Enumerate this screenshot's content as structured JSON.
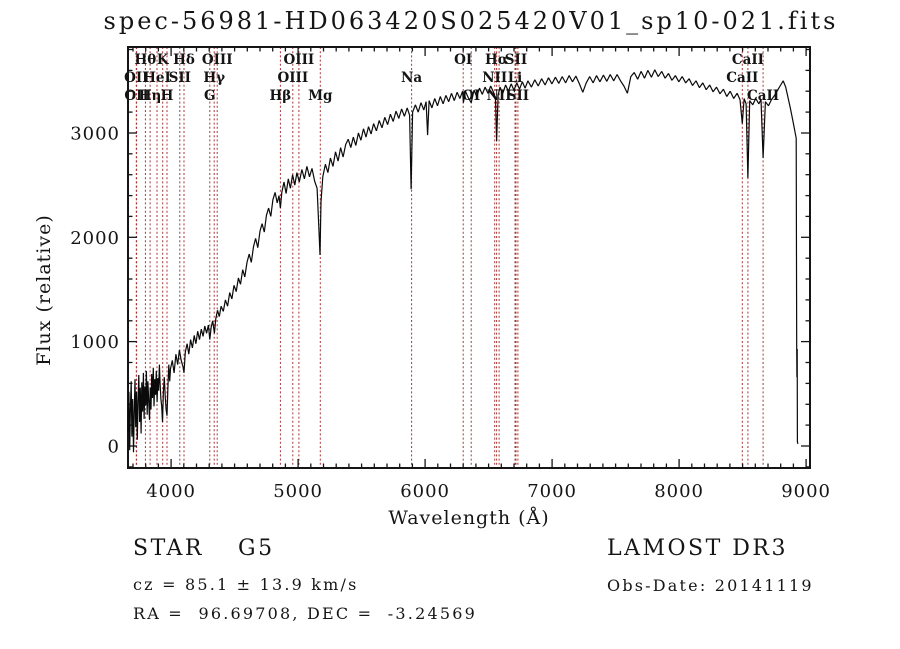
{
  "title": "spec-56981-HD063420S025420V01_sp10-021.fits",
  "annotations": {
    "object_class": "STAR",
    "subclass": "G5",
    "cz": "cz = 85.1 ± 13.9 km/s",
    "ra_dec": "RA =  96.69708, DEC =  -3.24569",
    "survey": "LAMOST DR3",
    "obs_date": "Obs-Date: 20141119"
  },
  "colors": {
    "background": "#ffffff",
    "spectrum": "#0a0a0a",
    "line_marker": "#a93434",
    "frame": "#151515"
  },
  "chart_data": {
    "type": "line",
    "title": "spec-56981-HD063420S025420V01_sp10-021.fits",
    "xlabel": "Wavelength (Å)",
    "ylabel": "Flux (relative)",
    "xlim": [
      3661,
      9031
    ],
    "ylim": [
      -211,
      3824
    ],
    "x_ticks": [
      4000,
      5000,
      6000,
      7000,
      8000,
      9000
    ],
    "y_ticks": [
      0,
      1000,
      2000,
      3000
    ],
    "x_minor_step": 100,
    "y_minor_step": 200,
    "grid": "off",
    "legend": "none",
    "spectral_lines": [
      {
        "wavelength": 3726,
        "label": "OII",
        "row": 1
      },
      {
        "wavelength": 3729,
        "label": "OII",
        "row": 2
      },
      {
        "wavelength": 3798,
        "label": "Hθ",
        "row": 0
      },
      {
        "wavelength": 3835,
        "label": "Hη",
        "row": 2
      },
      {
        "wavelength": 3889,
        "label": "HeI",
        "row": 1
      },
      {
        "wavelength": 3934,
        "label": "K",
        "row": 0
      },
      {
        "wavelength": 3968,
        "label": "H",
        "row": 2
      },
      {
        "wavelength": 4069,
        "label": "SII",
        "row": 1
      },
      {
        "wavelength": 4102,
        "label": "Hδ",
        "row": 0
      },
      {
        "wavelength": 4305,
        "label": "G",
        "row": 2
      },
      {
        "wavelength": 4340,
        "label": "Hγ",
        "row": 1
      },
      {
        "wavelength": 4363,
        "label": "OIII",
        "row": 0
      },
      {
        "wavelength": 4861,
        "label": "Hβ",
        "row": 2
      },
      {
        "wavelength": 4959,
        "label": "OIII",
        "row": 1
      },
      {
        "wavelength": 5007,
        "label": "OIII",
        "row": 0
      },
      {
        "wavelength": 5175,
        "label": "Mg",
        "row": 2
      },
      {
        "wavelength": 5894,
        "label": "Na",
        "row": 1
      },
      {
        "wavelength": 6300,
        "label": "OI",
        "row": 0
      },
      {
        "wavelength": 6363,
        "label": "OI",
        "row": 2
      },
      {
        "wavelength": 6548,
        "label": "NII",
        "row": 1
      },
      {
        "wavelength": 6563,
        "label": "Hα",
        "row": 0
      },
      {
        "wavelength": 6583,
        "label": "NII",
        "row": 2
      },
      {
        "wavelength": 6708,
        "label": "Li",
        "row": 1
      },
      {
        "wavelength": 6716,
        "label": "SII",
        "row": 0
      },
      {
        "wavelength": 6731,
        "label": "SII",
        "row": 2
      },
      {
        "wavelength": 8498,
        "label": "CaII",
        "row": 1
      },
      {
        "wavelength": 8542,
        "label": "CaII",
        "row": 0
      },
      {
        "wavelength": 8662,
        "label": "CaII",
        "row": 2
      }
    ],
    "spectrum": [
      [
        3662,
        140
      ],
      [
        3668,
        520
      ],
      [
        3674,
        -40
      ],
      [
        3680,
        360
      ],
      [
        3686,
        620
      ],
      [
        3692,
        90
      ],
      [
        3698,
        450
      ],
      [
        3704,
        -60
      ],
      [
        3710,
        300
      ],
      [
        3716,
        640
      ],
      [
        3722,
        180
      ],
      [
        3728,
        520
      ],
      [
        3734,
        60
      ],
      [
        3740,
        420
      ],
      [
        3746,
        680
      ],
      [
        3752,
        230
      ],
      [
        3758,
        560
      ],
      [
        3764,
        120
      ],
      [
        3770,
        610
      ],
      [
        3776,
        330
      ],
      [
        3782,
        700
      ],
      [
        3788,
        260
      ],
      [
        3794,
        570
      ],
      [
        3800,
        390
      ],
      [
        3806,
        720
      ],
      [
        3812,
        300
      ],
      [
        3818,
        620
      ],
      [
        3824,
        430
      ],
      [
        3830,
        250
      ],
      [
        3836,
        560
      ],
      [
        3842,
        350
      ],
      [
        3848,
        690
      ],
      [
        3854,
        460
      ],
      [
        3860,
        750
      ],
      [
        3866,
        380
      ],
      [
        3872,
        640
      ],
      [
        3878,
        490
      ],
      [
        3884,
        720
      ],
      [
        3890,
        420
      ],
      [
        3896,
        650
      ],
      [
        3902,
        530
      ],
      [
        3908,
        780
      ],
      [
        3914,
        600
      ],
      [
        3920,
        450
      ],
      [
        3926,
        380
      ],
      [
        3933,
        230
      ],
      [
        3940,
        520
      ],
      [
        3947,
        660
      ],
      [
        3954,
        480
      ],
      [
        3961,
        350
      ],
      [
        3968,
        290
      ],
      [
        3975,
        560
      ],
      [
        3982,
        780
      ],
      [
        3989,
        620
      ],
      [
        3996,
        740
      ],
      [
        4010,
        820
      ],
      [
        4024,
        700
      ],
      [
        4038,
        880
      ],
      [
        4052,
        780
      ],
      [
        4066,
        920
      ],
      [
        4080,
        820
      ],
      [
        4094,
        760
      ],
      [
        4102,
        700
      ],
      [
        4112,
        900
      ],
      [
        4126,
        980
      ],
      [
        4140,
        880
      ],
      [
        4154,
        1020
      ],
      [
        4168,
        940
      ],
      [
        4182,
        1060
      ],
      [
        4196,
        980
      ],
      [
        4210,
        1100
      ],
      [
        4224,
        1020
      ],
      [
        4238,
        1120
      ],
      [
        4252,
        1050
      ],
      [
        4266,
        1150
      ],
      [
        4280,
        1080
      ],
      [
        4294,
        1160
      ],
      [
        4305,
        1020
      ],
      [
        4316,
        1140
      ],
      [
        4328,
        1200
      ],
      [
        4341,
        1080
      ],
      [
        4352,
        1220
      ],
      [
        4366,
        1300
      ],
      [
        4380,
        1240
      ],
      [
        4394,
        1340
      ],
      [
        4411,
        1290
      ],
      [
        4428,
        1400
      ],
      [
        4445,
        1340
      ],
      [
        4462,
        1470
      ],
      [
        4479,
        1410
      ],
      [
        4496,
        1540
      ],
      [
        4513,
        1480
      ],
      [
        4530,
        1610
      ],
      [
        4547,
        1550
      ],
      [
        4564,
        1690
      ],
      [
        4581,
        1620
      ],
      [
        4598,
        1760
      ],
      [
        4615,
        1840
      ],
      [
        4632,
        1760
      ],
      [
        4649,
        1910
      ],
      [
        4666,
        1990
      ],
      [
        4683,
        1900
      ],
      [
        4700,
        2060
      ],
      [
        4717,
        2130
      ],
      [
        4734,
        2050
      ],
      [
        4751,
        2210
      ],
      [
        4768,
        2280
      ],
      [
        4785,
        2200
      ],
      [
        4802,
        2360
      ],
      [
        4819,
        2430
      ],
      [
        4836,
        2330
      ],
      [
        4850,
        2400
      ],
      [
        4861,
        2280
      ],
      [
        4872,
        2430
      ],
      [
        4889,
        2530
      ],
      [
        4906,
        2420
      ],
      [
        4923,
        2560
      ],
      [
        4940,
        2470
      ],
      [
        4957,
        2600
      ],
      [
        4974,
        2500
      ],
      [
        4991,
        2620
      ],
      [
        5010,
        2530
      ],
      [
        5030,
        2650
      ],
      [
        5050,
        2560
      ],
      [
        5070,
        2680
      ],
      [
        5090,
        2580
      ],
      [
        5110,
        2660
      ],
      [
        5130,
        2540
      ],
      [
        5150,
        2470
      ],
      [
        5165,
        2060
      ],
      [
        5173,
        1830
      ],
      [
        5181,
        2340
      ],
      [
        5195,
        2580
      ],
      [
        5215,
        2700
      ],
      [
        5235,
        2620
      ],
      [
        5255,
        2760
      ],
      [
        5275,
        2680
      ],
      [
        5295,
        2820
      ],
      [
        5315,
        2730
      ],
      [
        5335,
        2860
      ],
      [
        5355,
        2770
      ],
      [
        5375,
        2890
      ],
      [
        5395,
        2940
      ],
      [
        5415,
        2860
      ],
      [
        5435,
        2960
      ],
      [
        5455,
        2880
      ],
      [
        5475,
        3000
      ],
      [
        5495,
        2930
      ],
      [
        5515,
        3040
      ],
      [
        5535,
        2960
      ],
      [
        5555,
        3060
      ],
      [
        5575,
        2990
      ],
      [
        5595,
        3090
      ],
      [
        5617,
        3020
      ],
      [
        5639,
        3120
      ],
      [
        5661,
        3050
      ],
      [
        5683,
        3150
      ],
      [
        5705,
        3080
      ],
      [
        5727,
        3180
      ],
      [
        5749,
        3110
      ],
      [
        5771,
        3210
      ],
      [
        5793,
        3140
      ],
      [
        5815,
        3230
      ],
      [
        5837,
        3160
      ],
      [
        5859,
        3240
      ],
      [
        5878,
        3170
      ],
      [
        5890,
        2460
      ],
      [
        5902,
        3200
      ],
      [
        5924,
        3270
      ],
      [
        5946,
        3200
      ],
      [
        5968,
        3290
      ],
      [
        5990,
        3220
      ],
      [
        6008,
        3300
      ],
      [
        6020,
        2980
      ],
      [
        6032,
        3310
      ],
      [
        6054,
        3240
      ],
      [
        6076,
        3330
      ],
      [
        6098,
        3260
      ],
      [
        6120,
        3350
      ],
      [
        6142,
        3280
      ],
      [
        6164,
        3360
      ],
      [
        6186,
        3300
      ],
      [
        6208,
        3380
      ],
      [
        6230,
        3310
      ],
      [
        6252,
        3390
      ],
      [
        6274,
        3330
      ],
      [
        6296,
        3400
      ],
      [
        6302,
        3290
      ],
      [
        6318,
        3400
      ],
      [
        6340,
        3340
      ],
      [
        6363,
        3290
      ],
      [
        6385,
        3410
      ],
      [
        6407,
        3350
      ],
      [
        6429,
        3430
      ],
      [
        6451,
        3370
      ],
      [
        6473,
        3440
      ],
      [
        6495,
        3380
      ],
      [
        6517,
        3450
      ],
      [
        6539,
        3390
      ],
      [
        6555,
        3330
      ],
      [
        6563,
        2920
      ],
      [
        6575,
        3360
      ],
      [
        6590,
        3440
      ],
      [
        6612,
        3380
      ],
      [
        6634,
        3460
      ],
      [
        6656,
        3400
      ],
      [
        6678,
        3470
      ],
      [
        6700,
        3410
      ],
      [
        6722,
        3480
      ],
      [
        6744,
        3420
      ],
      [
        6766,
        3490
      ],
      [
        6788,
        3430
      ],
      [
        6810,
        3500
      ],
      [
        6837,
        3440
      ],
      [
        6864,
        3510
      ],
      [
        6891,
        3450
      ],
      [
        6918,
        3520
      ],
      [
        6945,
        3460
      ],
      [
        6972,
        3530
      ],
      [
        6999,
        3470
      ],
      [
        7026,
        3535
      ],
      [
        7053,
        3475
      ],
      [
        7080,
        3540
      ],
      [
        7107,
        3480
      ],
      [
        7134,
        3550
      ],
      [
        7161,
        3490
      ],
      [
        7188,
        3545
      ],
      [
        7215,
        3470
      ],
      [
        7242,
        3390
      ],
      [
        7269,
        3480
      ],
      [
        7296,
        3540
      ],
      [
        7323,
        3480
      ],
      [
        7350,
        3550
      ],
      [
        7377,
        3490
      ],
      [
        7404,
        3555
      ],
      [
        7431,
        3495
      ],
      [
        7458,
        3560
      ],
      [
        7485,
        3500
      ],
      [
        7512,
        3560
      ],
      [
        7539,
        3500
      ],
      [
        7566,
        3450
      ],
      [
        7593,
        3380
      ],
      [
        7607,
        3460
      ],
      [
        7620,
        3540
      ],
      [
        7647,
        3580
      ],
      [
        7674,
        3515
      ],
      [
        7701,
        3590
      ],
      [
        7728,
        3525
      ],
      [
        7755,
        3600
      ],
      [
        7782,
        3535
      ],
      [
        7809,
        3605
      ],
      [
        7836,
        3540
      ],
      [
        7863,
        3590
      ],
      [
        7890,
        3525
      ],
      [
        7917,
        3570
      ],
      [
        7944,
        3505
      ],
      [
        7971,
        3550
      ],
      [
        7998,
        3490
      ],
      [
        8025,
        3540
      ],
      [
        8052,
        3480
      ],
      [
        8079,
        3520
      ],
      [
        8106,
        3455
      ],
      [
        8133,
        3500
      ],
      [
        8160,
        3435
      ],
      [
        8187,
        3480
      ],
      [
        8214,
        3415
      ],
      [
        8241,
        3460
      ],
      [
        8268,
        3395
      ],
      [
        8295,
        3440
      ],
      [
        8322,
        3375
      ],
      [
        8349,
        3420
      ],
      [
        8376,
        3350
      ],
      [
        8403,
        3400
      ],
      [
        8430,
        3330
      ],
      [
        8457,
        3380
      ],
      [
        8480,
        3320
      ],
      [
        8498,
        3090
      ],
      [
        8512,
        3330
      ],
      [
        8528,
        3280
      ],
      [
        8542,
        2570
      ],
      [
        8556,
        3310
      ],
      [
        8580,
        3270
      ],
      [
        8604,
        3330
      ],
      [
        8628,
        3280
      ],
      [
        8645,
        3320
      ],
      [
        8662,
        2760
      ],
      [
        8680,
        3300
      ],
      [
        8704,
        3260
      ],
      [
        8728,
        3320
      ],
      [
        8752,
        3360
      ],
      [
        8776,
        3410
      ],
      [
        8800,
        3460
      ],
      [
        8820,
        3500
      ],
      [
        8840,
        3440
      ],
      [
        8858,
        3340
      ],
      [
        8876,
        3240
      ],
      [
        8894,
        3130
      ],
      [
        8910,
        3030
      ],
      [
        8922,
        2950
      ],
      [
        8926,
        950
      ],
      [
        8928,
        660
      ],
      [
        8930,
        930
      ],
      [
        8932,
        40
      ],
      [
        8936,
        20
      ]
    ]
  }
}
